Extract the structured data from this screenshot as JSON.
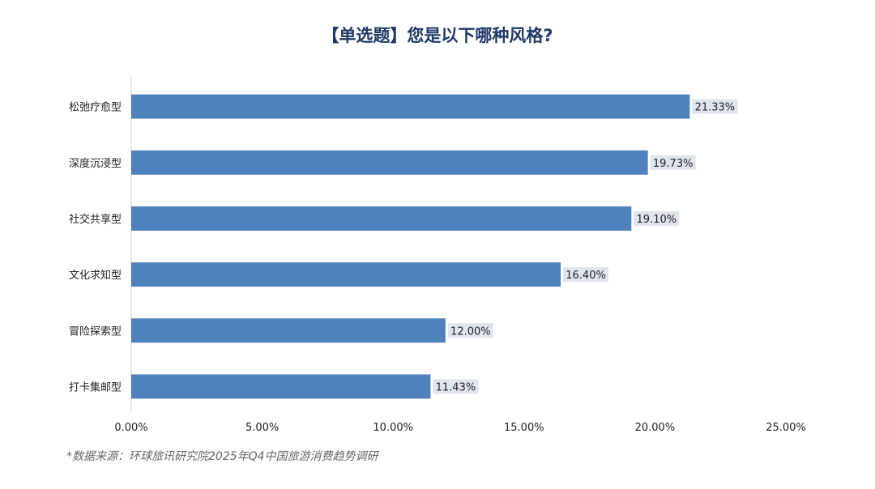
{
  "chart_data": {
    "type": "bar",
    "orientation": "horizontal",
    "title": "【单选题】您是以下哪种风格?",
    "categories": [
      "松弛疗愈型",
      "深度沉浸型",
      "社交共享型",
      "文化求知型",
      "冒险探索型",
      "打卡集邮型"
    ],
    "values": [
      21.33,
      19.73,
      19.1,
      16.4,
      12.0,
      11.43
    ],
    "data_labels": [
      "21.33%",
      "19.73%",
      "19.10%",
      "16.40%",
      "12.00%",
      "11.43%"
    ],
    "xlim": [
      0,
      25
    ],
    "xticks": [
      "0.00%",
      "5.00%",
      "10.00%",
      "15.00%",
      "20.00%",
      "25.00%"
    ],
    "xlabel": "",
    "ylabel": "",
    "bar_color": "#4f81bd",
    "label_bg_color": "#dfe5ef",
    "grid": false
  },
  "source": "*数据来源：环球旅讯研究院2025年Q4中国旅游消费趋势调研"
}
